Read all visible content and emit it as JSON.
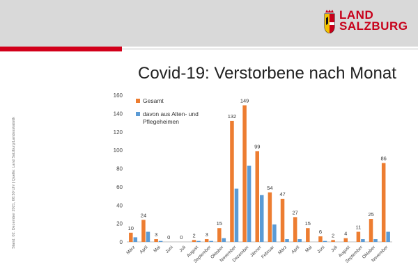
{
  "header": {
    "logo_line1": "LAND",
    "logo_line2": "SALZBURG"
  },
  "side_note": "Stand: 02. Dezember 2021, 08:30 Uhr | Quelle: Land Salzburg/Landesstatistik",
  "colors": {
    "gesamt": "#ed7d31",
    "alten": "#5b9bd5",
    "brand_red": "#d2001a"
  },
  "chart_data": {
    "type": "bar",
    "title": "Covid-19: Verstorbene nach Monat",
    "categories": [
      "März",
      "April",
      "Mai",
      "Juni",
      "Juli",
      "August",
      "September",
      "Oktober",
      "November",
      "Dezember",
      "Jänner",
      "Februar",
      "März",
      "April",
      "Mai",
      "Juni",
      "Juli",
      "August",
      "September",
      "Oktober",
      "November"
    ],
    "ylim": [
      0,
      160
    ],
    "yticks": [
      0,
      20,
      40,
      60,
      80,
      100,
      120,
      140,
      160
    ],
    "grid": false,
    "legend_placement": "top-left",
    "series": [
      {
        "name": "Gesamt",
        "values": [
          10,
          24,
          3,
          0,
          0,
          2,
          3,
          15,
          132,
          149,
          99,
          54,
          47,
          27,
          15,
          6,
          2,
          4,
          11,
          25,
          86
        ]
      },
      {
        "name": "davon aus Alten- und Pflegeheimen",
        "values": [
          5,
          11,
          1,
          0,
          0,
          1,
          1,
          4,
          58,
          83,
          51,
          19,
          3,
          3,
          0,
          1,
          0,
          0,
          3,
          3,
          11
        ]
      }
    ],
    "data_labels": [
      "10",
      "24",
      "3",
      "0",
      "0",
      "2",
      "3",
      "15",
      "132",
      "149",
      "99",
      "54",
      "47",
      "27",
      "15",
      "6",
      "2",
      "4",
      "11",
      "25",
      "86"
    ]
  }
}
